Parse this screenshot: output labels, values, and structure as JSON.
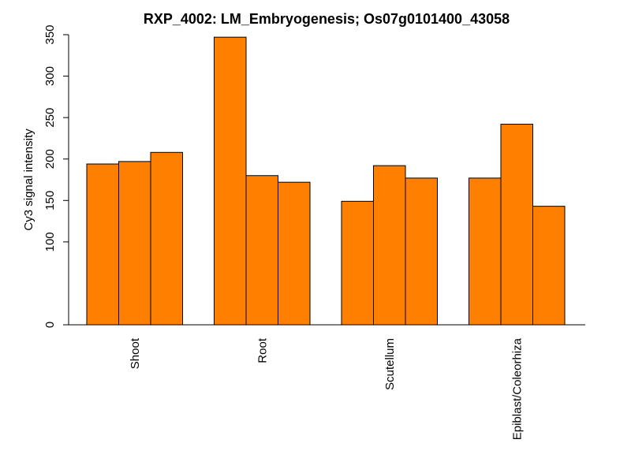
{
  "chart_data": {
    "type": "bar",
    "title": "RXP_4002: LM_Embryogenesis; Os07g0101400_43058",
    "xlabel": "",
    "ylabel": "Cy3 signal intensity",
    "categories": [
      "Shoot",
      "Root",
      "Scutellum",
      "Epiblast/Coleorhiza"
    ],
    "values": [
      [
        194,
        197,
        208
      ],
      [
        347,
        180,
        172
      ],
      [
        149,
        192,
        177
      ],
      [
        177,
        242,
        143
      ]
    ],
    "y_tick_values": [
      0,
      100,
      150,
      200,
      250,
      300,
      350
    ],
    "y_tick_labels": [
      "0",
      "100",
      "150",
      "200",
      "250",
      "300",
      "350"
    ],
    "ylim": [
      0,
      350
    ],
    "bar_color": "#ff7f00",
    "grid": false,
    "legend": "none"
  }
}
